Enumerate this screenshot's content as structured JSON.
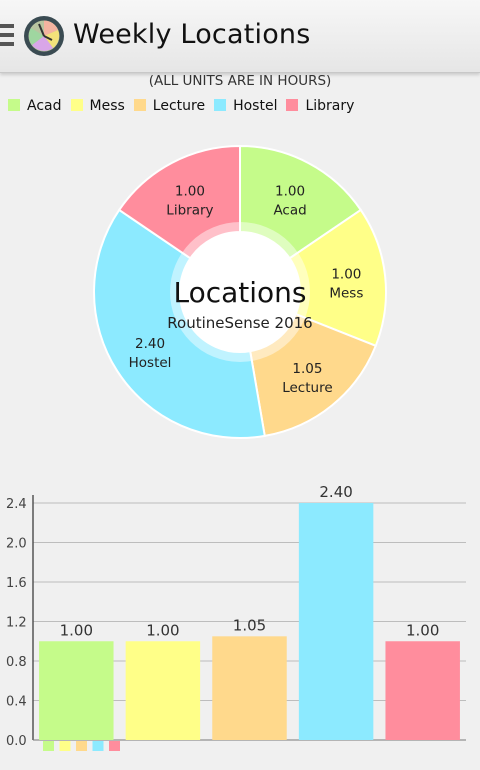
{
  "app": {
    "title": "Weekly Locations",
    "units_note": "(ALL UNITS ARE IN HOURS)"
  },
  "icons": {
    "menu": "menu-icon",
    "logo": "clock-pie-app-logo"
  },
  "colors": {
    "Acad": "#c5fb8a",
    "Mess": "#ffff88",
    "Lecture": "#ffd98c",
    "Hostel": "#8ceaff",
    "Library": "#ff8d9d"
  },
  "legend": [
    "Acad",
    "Mess",
    "Lecture",
    "Hostel",
    "Library"
  ],
  "chart_data": [
    {
      "type": "pie",
      "style": "donut",
      "center_title": "Locations",
      "center_subtitle": "RoutineSense 2016",
      "labels": [
        "Acad",
        "Mess",
        "Lecture",
        "Hostel",
        "Library"
      ],
      "values": [
        1.0,
        1.0,
        1.05,
        2.4,
        1.0
      ],
      "value_labels": [
        "1.00",
        "1.00",
        "1.05",
        "2.40",
        "1.00"
      ]
    },
    {
      "type": "bar",
      "categories": [
        "Acad",
        "Mess",
        "Lecture",
        "Hostel",
        "Library"
      ],
      "values": [
        1.0,
        1.0,
        1.05,
        2.4,
        1.0
      ],
      "value_labels": [
        "1.00",
        "1.00",
        "1.05",
        "2.40",
        "1.00"
      ],
      "ylim": [
        0,
        2.4
      ],
      "yticks": [
        "0.0",
        "0.4",
        "0.8",
        "1.2",
        "1.6",
        "2.0",
        "2.4"
      ],
      "grid": true
    }
  ]
}
